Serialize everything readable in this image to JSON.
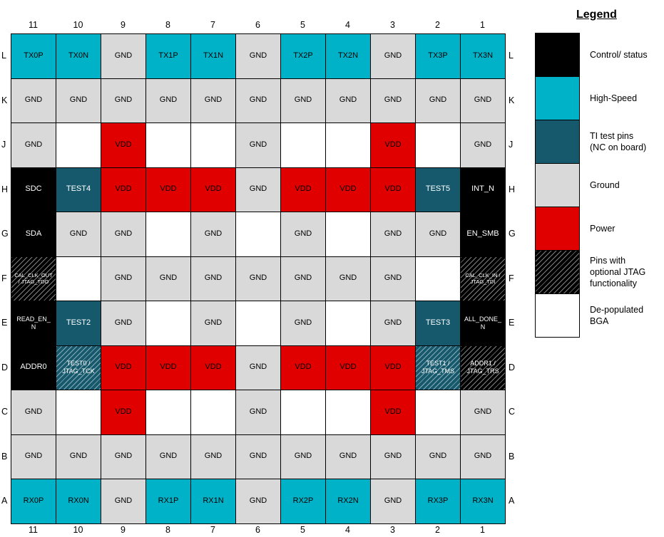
{
  "colors": {
    "ctrl": "#000000",
    "hs": "#00B2C7",
    "test": "#16596C",
    "gnd": "#D9D9D9",
    "pwr": "#E00000",
    "empty": "#FFFFFF"
  },
  "legend": {
    "title": "Legend",
    "items": [
      {
        "label": "Control/ status",
        "type": "ctrl"
      },
      {
        "label": "High-Speed",
        "type": "hs"
      },
      {
        "label": "TI test pins\n(NC on board)",
        "type": "test"
      },
      {
        "label": "Ground",
        "type": "gnd"
      },
      {
        "label": "Power",
        "type": "pwr"
      },
      {
        "label": "Pins with\noptional JTAG\nfunctionality",
        "type": "jtag_ctrl"
      },
      {
        "label": "De-populated\nBGA",
        "type": "empty"
      }
    ]
  },
  "grid": {
    "col_labels": [
      "11",
      "10",
      "9",
      "8",
      "7",
      "6",
      "5",
      "4",
      "3",
      "2",
      "1"
    ],
    "rows": [
      {
        "label": "L",
        "cells": [
          {
            "t": "TX0P",
            "c": "hs"
          },
          {
            "t": "TX0N",
            "c": "hs"
          },
          {
            "t": "GND",
            "c": "gnd"
          },
          {
            "t": "TX1P",
            "c": "hs"
          },
          {
            "t": "TX1N",
            "c": "hs"
          },
          {
            "t": "GND",
            "c": "gnd"
          },
          {
            "t": "TX2P",
            "c": "hs"
          },
          {
            "t": "TX2N",
            "c": "hs"
          },
          {
            "t": "GND",
            "c": "gnd"
          },
          {
            "t": "TX3P",
            "c": "hs"
          },
          {
            "t": "TX3N",
            "c": "hs"
          }
        ]
      },
      {
        "label": "K",
        "cells": [
          {
            "t": "GND",
            "c": "gnd"
          },
          {
            "t": "GND",
            "c": "gnd"
          },
          {
            "t": "GND",
            "c": "gnd"
          },
          {
            "t": "GND",
            "c": "gnd"
          },
          {
            "t": "GND",
            "c": "gnd"
          },
          {
            "t": "GND",
            "c": "gnd"
          },
          {
            "t": "GND",
            "c": "gnd"
          },
          {
            "t": "GND",
            "c": "gnd"
          },
          {
            "t": "GND",
            "c": "gnd"
          },
          {
            "t": "GND",
            "c": "gnd"
          },
          {
            "t": "GND",
            "c": "gnd"
          }
        ]
      },
      {
        "label": "J",
        "cells": [
          {
            "t": "GND",
            "c": "gnd"
          },
          {
            "t": "",
            "c": "empty"
          },
          {
            "t": "VDD",
            "c": "pwr"
          },
          {
            "t": "",
            "c": "empty"
          },
          {
            "t": "",
            "c": "empty"
          },
          {
            "t": "GND",
            "c": "gnd"
          },
          {
            "t": "",
            "c": "empty"
          },
          {
            "t": "",
            "c": "empty"
          },
          {
            "t": "VDD",
            "c": "pwr"
          },
          {
            "t": "",
            "c": "empty"
          },
          {
            "t": "GND",
            "c": "gnd"
          }
        ]
      },
      {
        "label": "H",
        "cells": [
          {
            "t": "SDC",
            "c": "ctrl"
          },
          {
            "t": "TEST4",
            "c": "test"
          },
          {
            "t": "VDD",
            "c": "pwr"
          },
          {
            "t": "VDD",
            "c": "pwr"
          },
          {
            "t": "VDD",
            "c": "pwr"
          },
          {
            "t": "GND",
            "c": "gnd"
          },
          {
            "t": "VDD",
            "c": "pwr"
          },
          {
            "t": "VDD",
            "c": "pwr"
          },
          {
            "t": "VDD",
            "c": "pwr"
          },
          {
            "t": "TEST5",
            "c": "test"
          },
          {
            "t": "INT_N",
            "c": "ctrl"
          }
        ]
      },
      {
        "label": "G",
        "cells": [
          {
            "t": "SDA",
            "c": "ctrl"
          },
          {
            "t": "GND",
            "c": "gnd"
          },
          {
            "t": "GND",
            "c": "gnd"
          },
          {
            "t": "",
            "c": "empty"
          },
          {
            "t": "GND",
            "c": "gnd"
          },
          {
            "t": "",
            "c": "empty"
          },
          {
            "t": "GND",
            "c": "gnd"
          },
          {
            "t": "",
            "c": "empty"
          },
          {
            "t": "GND",
            "c": "gnd"
          },
          {
            "t": "GND",
            "c": "gnd"
          },
          {
            "t": "EN_SMB",
            "c": "ctrl"
          }
        ]
      },
      {
        "label": "F",
        "cells": [
          {
            "t": "CAL_CLK_OUT\n/ JTAG_TDO",
            "c": "jtag_ctrl",
            "s": "xs"
          },
          {
            "t": "",
            "c": "empty"
          },
          {
            "t": "GND",
            "c": "gnd"
          },
          {
            "t": "GND",
            "c": "gnd"
          },
          {
            "t": "GND",
            "c": "gnd"
          },
          {
            "t": "GND",
            "c": "gnd"
          },
          {
            "t": "GND",
            "c": "gnd"
          },
          {
            "t": "GND",
            "c": "gnd"
          },
          {
            "t": "GND",
            "c": "gnd"
          },
          {
            "t": "",
            "c": "empty"
          },
          {
            "t": "CAL_CLK_IN /\nJTAG_TDI",
            "c": "jtag_ctrl",
            "s": "xs"
          }
        ]
      },
      {
        "label": "E",
        "cells": [
          {
            "t": "READ_EN_\nN",
            "c": "ctrl",
            "s": "sm"
          },
          {
            "t": "TEST2",
            "c": "test"
          },
          {
            "t": "GND",
            "c": "gnd"
          },
          {
            "t": "",
            "c": "empty"
          },
          {
            "t": "GND",
            "c": "gnd"
          },
          {
            "t": "",
            "c": "empty"
          },
          {
            "t": "GND",
            "c": "gnd"
          },
          {
            "t": "",
            "c": "empty"
          },
          {
            "t": "GND",
            "c": "gnd"
          },
          {
            "t": "TEST3",
            "c": "test"
          },
          {
            "t": "ALL_DONE_\nN",
            "c": "ctrl",
            "s": "sm"
          }
        ]
      },
      {
        "label": "D",
        "cells": [
          {
            "t": "ADDR0",
            "c": "ctrl"
          },
          {
            "t": "TEST0 /\nJTAG_TCK",
            "c": "jtag_test",
            "s": "sm"
          },
          {
            "t": "VDD",
            "c": "pwr"
          },
          {
            "t": "VDD",
            "c": "pwr"
          },
          {
            "t": "VDD",
            "c": "pwr"
          },
          {
            "t": "GND",
            "c": "gnd"
          },
          {
            "t": "VDD",
            "c": "pwr"
          },
          {
            "t": "VDD",
            "c": "pwr"
          },
          {
            "t": "VDD",
            "c": "pwr"
          },
          {
            "t": "TEST1 /\nJTAG_TMS",
            "c": "jtag_test",
            "s": "sm"
          },
          {
            "t": "ADDR1 /\nJTAG_TRS",
            "c": "jtag_ctrl",
            "s": "sm"
          }
        ]
      },
      {
        "label": "C",
        "cells": [
          {
            "t": "GND",
            "c": "gnd"
          },
          {
            "t": "",
            "c": "empty"
          },
          {
            "t": "VDD",
            "c": "pwr"
          },
          {
            "t": "",
            "c": "empty"
          },
          {
            "t": "",
            "c": "empty"
          },
          {
            "t": "GND",
            "c": "gnd"
          },
          {
            "t": "",
            "c": "empty"
          },
          {
            "t": "",
            "c": "empty"
          },
          {
            "t": "VDD",
            "c": "pwr"
          },
          {
            "t": "",
            "c": "empty"
          },
          {
            "t": "GND",
            "c": "gnd"
          }
        ]
      },
      {
        "label": "B",
        "cells": [
          {
            "t": "GND",
            "c": "gnd"
          },
          {
            "t": "GND",
            "c": "gnd"
          },
          {
            "t": "GND",
            "c": "gnd"
          },
          {
            "t": "GND",
            "c": "gnd"
          },
          {
            "t": "GND",
            "c": "gnd"
          },
          {
            "t": "GND",
            "c": "gnd"
          },
          {
            "t": "GND",
            "c": "gnd"
          },
          {
            "t": "GND",
            "c": "gnd"
          },
          {
            "t": "GND",
            "c": "gnd"
          },
          {
            "t": "GND",
            "c": "gnd"
          },
          {
            "t": "GND",
            "c": "gnd"
          }
        ]
      },
      {
        "label": "A",
        "cells": [
          {
            "t": "RX0P",
            "c": "hs"
          },
          {
            "t": "RX0N",
            "c": "hs"
          },
          {
            "t": "GND",
            "c": "gnd"
          },
          {
            "t": "RX1P",
            "c": "hs"
          },
          {
            "t": "RX1N",
            "c": "hs"
          },
          {
            "t": "GND",
            "c": "gnd"
          },
          {
            "t": "RX2P",
            "c": "hs"
          },
          {
            "t": "RX2N",
            "c": "hs"
          },
          {
            "t": "GND",
            "c": "gnd"
          },
          {
            "t": "RX3P",
            "c": "hs"
          },
          {
            "t": "RX3N",
            "c": "hs"
          }
        ]
      }
    ]
  }
}
